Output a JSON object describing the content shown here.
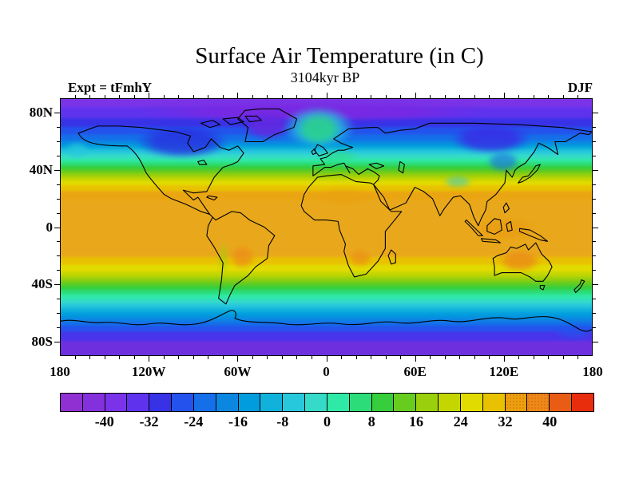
{
  "header": {
    "title": "Surface Air Temperature (in C)",
    "subtitle": "3104kyr BP",
    "experiment_label": "Expt = tFmhY",
    "season_label": "DJF"
  },
  "axes": {
    "x_ticks": [
      {
        "label": "180",
        "lon": -180
      },
      {
        "label": "120W",
        "lon": -120
      },
      {
        "label": "60W",
        "lon": -60
      },
      {
        "label": "0",
        "lon": 0
      },
      {
        "label": "60E",
        "lon": 60
      },
      {
        "label": "120E",
        "lon": 120
      },
      {
        "label": "180",
        "lon": 180
      }
    ],
    "y_ticks": [
      {
        "label": "80N",
        "lat": 80
      },
      {
        "label": "40N",
        "lat": 40
      },
      {
        "label": "0",
        "lat": 0
      },
      {
        "label": "40S",
        "lat": -40
      },
      {
        "label": "80S",
        "lat": -80
      }
    ]
  },
  "chart_data": {
    "type": "heatmap",
    "projection": "equirectangular",
    "title": "Surface Air Temperature (in C)",
    "time_label": "3104kyr BP",
    "experiment": "tFmhY",
    "season": "DJF",
    "units": "C",
    "lon_range": [
      -180,
      180
    ],
    "lat_range": [
      -90,
      90
    ],
    "x_tick_labels": [
      "180",
      "120W",
      "60W",
      "0",
      "60E",
      "120E",
      "180"
    ],
    "y_tick_labels": [
      "80N",
      "40N",
      "0",
      "40S",
      "80S"
    ],
    "colorbar": {
      "units": "C",
      "levels": [
        -44,
        -40,
        -36,
        -32,
        -28,
        -24,
        -20,
        -16,
        -12,
        -8,
        -4,
        0,
        4,
        8,
        12,
        16,
        20,
        24,
        28,
        32,
        36,
        40,
        44
      ],
      "tick_labels": [
        "-40",
        "-32",
        "-24",
        "-16",
        "-8",
        "0",
        "8",
        "16",
        "24",
        "32",
        "40"
      ],
      "colors": [
        "#9130D2",
        "#8430DC",
        "#7A33E8",
        "#5F33EE",
        "#3832E6",
        "#2353EC",
        "#146FE9",
        "#0B87E2",
        "#019CDD",
        "#10B2DC",
        "#27C8DC",
        "#35DBC8",
        "#2FE9A6",
        "#2CDC78",
        "#36CE3C",
        "#66CC1E",
        "#9ACF0C",
        "#C3D600",
        "#E2DB00",
        "#E8C200",
        "#EAA10E",
        "#EC8A18",
        "#E95C14",
        "#E72D0C"
      ],
      "stippled_cells": [
        20,
        21
      ]
    },
    "zonal_mean_C": [
      [
        90,
        -36
      ],
      [
        80,
        -33
      ],
      [
        70,
        -26
      ],
      [
        60,
        -17
      ],
      [
        50,
        -7
      ],
      [
        40,
        3
      ],
      [
        30,
        12
      ],
      [
        20,
        20
      ],
      [
        10,
        25
      ],
      [
        0,
        26
      ],
      [
        -10,
        26
      ],
      [
        -20,
        24
      ],
      [
        -30,
        17
      ],
      [
        -40,
        9
      ],
      [
        -50,
        1
      ],
      [
        -60,
        -7
      ],
      [
        -70,
        -24
      ],
      [
        -80,
        -33
      ],
      [
        -90,
        -36
      ]
    ],
    "zonal_bands": [
      {
        "to_lat": 80,
        "color": "#7A33E8"
      },
      {
        "to_lat": 73,
        "color": "#5F33EE"
      },
      {
        "to_lat": 67,
        "color": "#3832E6"
      },
      {
        "to_lat": 62,
        "color": "#2353EC"
      },
      {
        "to_lat": 58,
        "color": "#146FE9"
      },
      {
        "to_lat": 55.5,
        "color": "#0B87E2"
      },
      {
        "to_lat": 53.5,
        "color": "#019CDD"
      },
      {
        "to_lat": 51.5,
        "color": "#10B2DC"
      },
      {
        "to_lat": 49,
        "color": "#27C8DC"
      },
      {
        "to_lat": 46,
        "color": "#35DBC8"
      },
      {
        "to_lat": 43.5,
        "color": "#2FE9A6"
      },
      {
        "to_lat": 41,
        "color": "#2CDC78"
      },
      {
        "to_lat": 38.5,
        "color": "#36CE3C"
      },
      {
        "to_lat": 36,
        "color": "#66CC1E"
      },
      {
        "to_lat": 33.5,
        "color": "#9ACF0C"
      },
      {
        "to_lat": 31,
        "color": "#C3D600"
      },
      {
        "to_lat": 28,
        "color": "#E2DB00"
      },
      {
        "to_lat": 24,
        "color": "#E8C200"
      },
      {
        "to_lat": 18,
        "color": "#EAA512"
      },
      {
        "to_lat": -20,
        "color": "#E9A81B"
      },
      {
        "to_lat": -25,
        "color": "#E8C200"
      },
      {
        "to_lat": -30,
        "color": "#E2DB00"
      },
      {
        "to_lat": -33,
        "color": "#C3D600"
      },
      {
        "to_lat": -36,
        "color": "#9ACF0C"
      },
      {
        "to_lat": -39,
        "color": "#66CC1E"
      },
      {
        "to_lat": -42,
        "color": "#36CE3C"
      },
      {
        "to_lat": -45,
        "color": "#2CDC78"
      },
      {
        "to_lat": -48,
        "color": "#2FE9A6"
      },
      {
        "to_lat": -51,
        "color": "#35DBC8"
      },
      {
        "to_lat": -54,
        "color": "#27C8DC"
      },
      {
        "to_lat": -57,
        "color": "#10B2DC"
      },
      {
        "to_lat": -60,
        "color": "#019CDD"
      },
      {
        "to_lat": -63,
        "color": "#0B87E2"
      },
      {
        "to_lat": -66,
        "color": "#146FE9"
      },
      {
        "to_lat": -70,
        "color": "#2353EC"
      },
      {
        "to_lat": -76,
        "color": "#4834EA"
      },
      {
        "to_lat": -90,
        "color": "#6E30DF"
      }
    ],
    "features": [
      {
        "name": "arctic-deep-cold",
        "lon": [
          -170,
          150
        ],
        "lat": [
          72,
          90
        ],
        "color": "#7A28E2",
        "opacity": 0.9
      },
      {
        "name": "n-america-cold",
        "lon": [
          -140,
          -55
        ],
        "lat": [
          44,
          76
        ],
        "color": "#2A2FE0",
        "opacity": 0.8
      },
      {
        "name": "greenland-cold",
        "lon": [
          -62,
          -18
        ],
        "lat": [
          58,
          84
        ],
        "color": "#6428E0",
        "opacity": 0.85
      },
      {
        "name": "siberia-cold",
        "lon": [
          75,
          148
        ],
        "lat": [
          48,
          76
        ],
        "color": "#3A2AE6",
        "opacity": 0.8
      },
      {
        "name": "ne-asia-cold",
        "lon": [
          105,
          135
        ],
        "lat": [
          36,
          56
        ],
        "color": "#1D66E8",
        "opacity": 0.6
      },
      {
        "name": "n-atlantic-warm-outer",
        "lon": [
          -38,
          28
        ],
        "lat": [
          50,
          90
        ],
        "color": "#27C8DC",
        "opacity": 0.75
      },
      {
        "name": "n-atlantic-warm-core",
        "lon": [
          -25,
          15
        ],
        "lat": [
          54,
          84
        ],
        "color": "#2CDC78",
        "opacity": 0.7
      },
      {
        "name": "bering-warm",
        "lon": [
          -180,
          -158
        ],
        "lat": [
          46,
          62
        ],
        "color": "#27C8DC",
        "opacity": 0.7
      },
      {
        "name": "europe-mild",
        "lon": [
          -12,
          28
        ],
        "lat": [
          44,
          56
        ],
        "color": "#2CDC78",
        "opacity": 0.5
      },
      {
        "name": "tibet-cool",
        "lon": [
          76,
          102
        ],
        "lat": [
          26,
          38
        ],
        "color": "#27C8DC",
        "opacity": 0.5
      },
      {
        "name": "sahara-warm",
        "lon": [
          -12,
          36
        ],
        "lat": [
          12,
          30
        ],
        "color": "#E9A010",
        "opacity": 0.55
      },
      {
        "name": "s-america-warm",
        "lon": [
          -68,
          -46
        ],
        "lat": [
          -32,
          -10
        ],
        "color": "#EC8A18",
        "opacity": 0.7
      },
      {
        "name": "kalahari-warm",
        "lon": [
          12,
          34
        ],
        "lat": [
          -30,
          -14
        ],
        "color": "#EC8A18",
        "opacity": 0.65
      },
      {
        "name": "australia-warm",
        "lon": [
          112,
          150
        ],
        "lat": [
          -34,
          -14
        ],
        "color": "#EC8A18",
        "opacity": 0.8
      },
      {
        "name": "maritime-warm",
        "lon": [
          92,
          152
        ],
        "lat": [
          -12,
          10
        ],
        "color": "#E9980F",
        "opacity": 0.55
      },
      {
        "name": "andes-cool",
        "lon": [
          -74,
          -66
        ],
        "lat": [
          -38,
          -6
        ],
        "color": "#9ACF0C",
        "opacity": 0.55
      },
      {
        "name": "ross-sea-blue",
        "lon": [
          150,
          185
        ],
        "lat": [
          -80,
          -68
        ],
        "color": "#2353EC",
        "opacity": 0.7
      }
    ]
  }
}
